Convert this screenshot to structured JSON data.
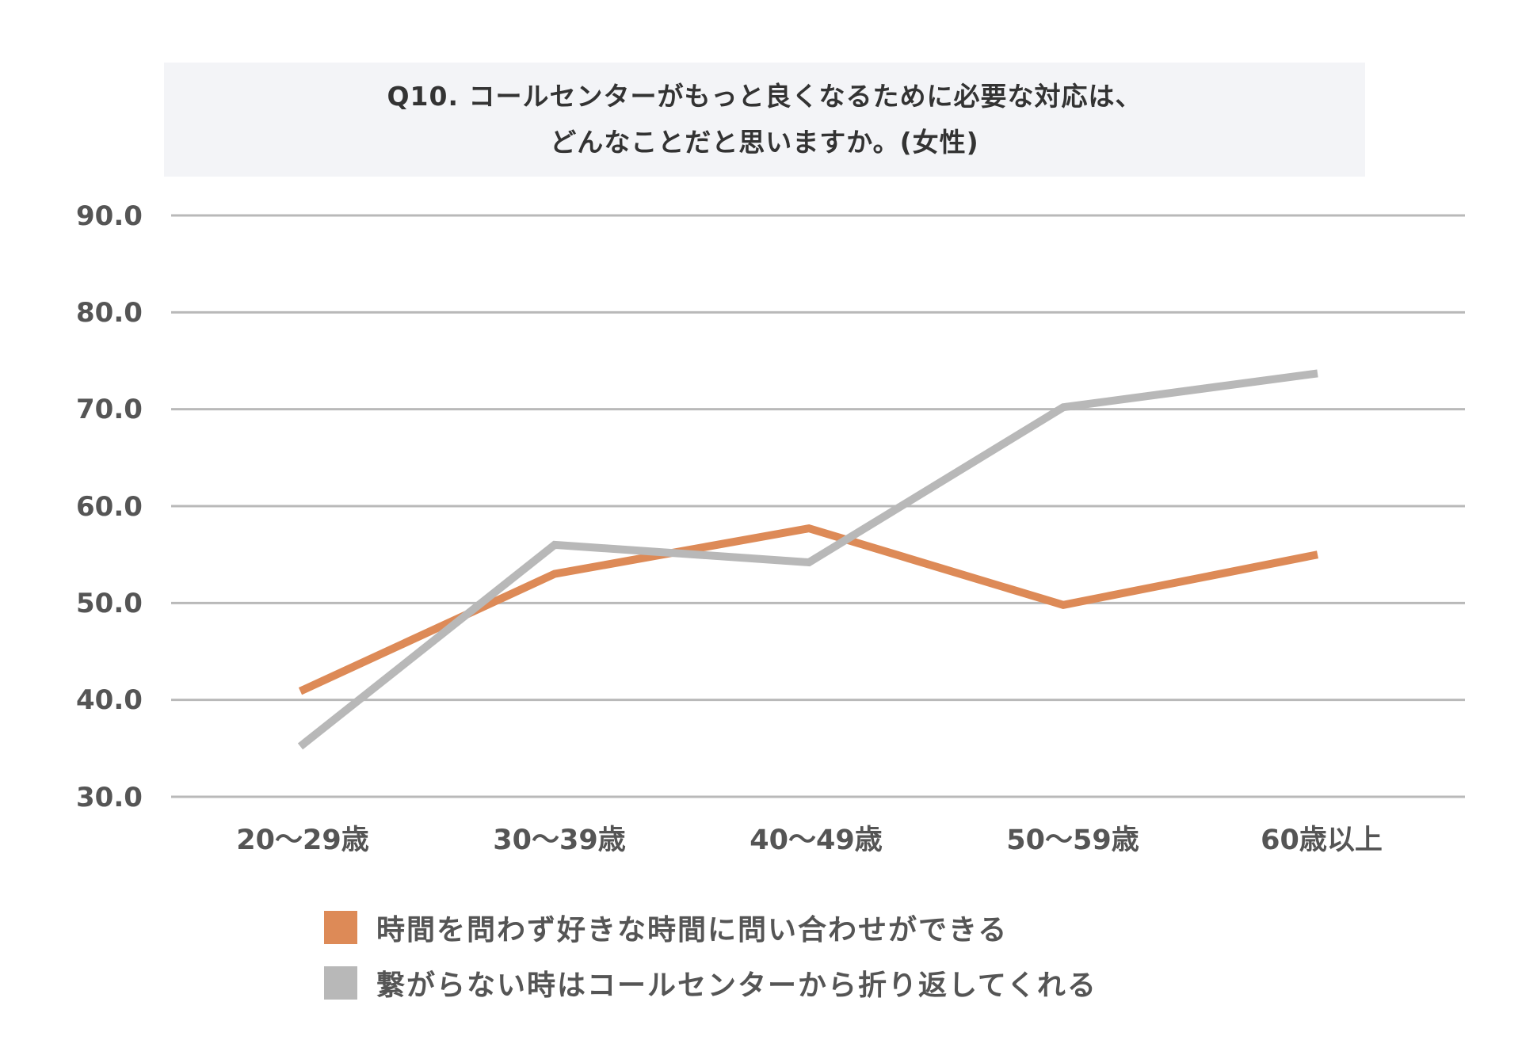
{
  "title": {
    "line1": "Q10. コールセンターがもっと良くなるために必要な対応は、",
    "line2": "どんなことだと思いますか。(女性)"
  },
  "colors": {
    "series1": "#dd8a57",
    "series2": "#b8b8b8",
    "grid": "#b9b9b9",
    "title_bg": "#f3f4f7"
  },
  "y_ticks": [
    "90.0",
    "80.0",
    "70.0",
    "60.0",
    "50.0",
    "40.0",
    "30.0"
  ],
  "x_ticks": [
    "20〜29歳",
    "30〜39歳",
    "40〜49歳",
    "50〜59歳",
    "60歳以上"
  ],
  "legend": [
    {
      "label": "時間を問わず好きな時間に問い合わせができる",
      "color": "#dd8a57"
    },
    {
      "label": "繋がらない時はコールセンターから折り返してくれる",
      "color": "#b8b8b8"
    }
  ],
  "chart_data": {
    "type": "line",
    "title": "Q10. コールセンターがもっと良くなるために必要な対応は、どんなことだと思いますか。(女性)",
    "categories": [
      "20〜29歳",
      "30〜39歳",
      "40〜49歳",
      "50〜59歳",
      "60歳以上"
    ],
    "series": [
      {
        "name": "時間を問わず好きな時間に問い合わせができる",
        "color": "#dd8a57",
        "values": [
          40.9,
          53.0,
          57.7,
          49.8,
          55.0
        ]
      },
      {
        "name": "繋がらない時はコールセンターから折り返してくれる",
        "color": "#b8b8b8",
        "values": [
          35.2,
          56.0,
          54.2,
          70.2,
          73.7
        ]
      }
    ],
    "xlabel": "",
    "ylabel": "",
    "ylim": [
      30,
      90
    ],
    "yticks": [
      30,
      40,
      50,
      60,
      70,
      80,
      90
    ],
    "grid": true,
    "legend_position": "bottom"
  }
}
